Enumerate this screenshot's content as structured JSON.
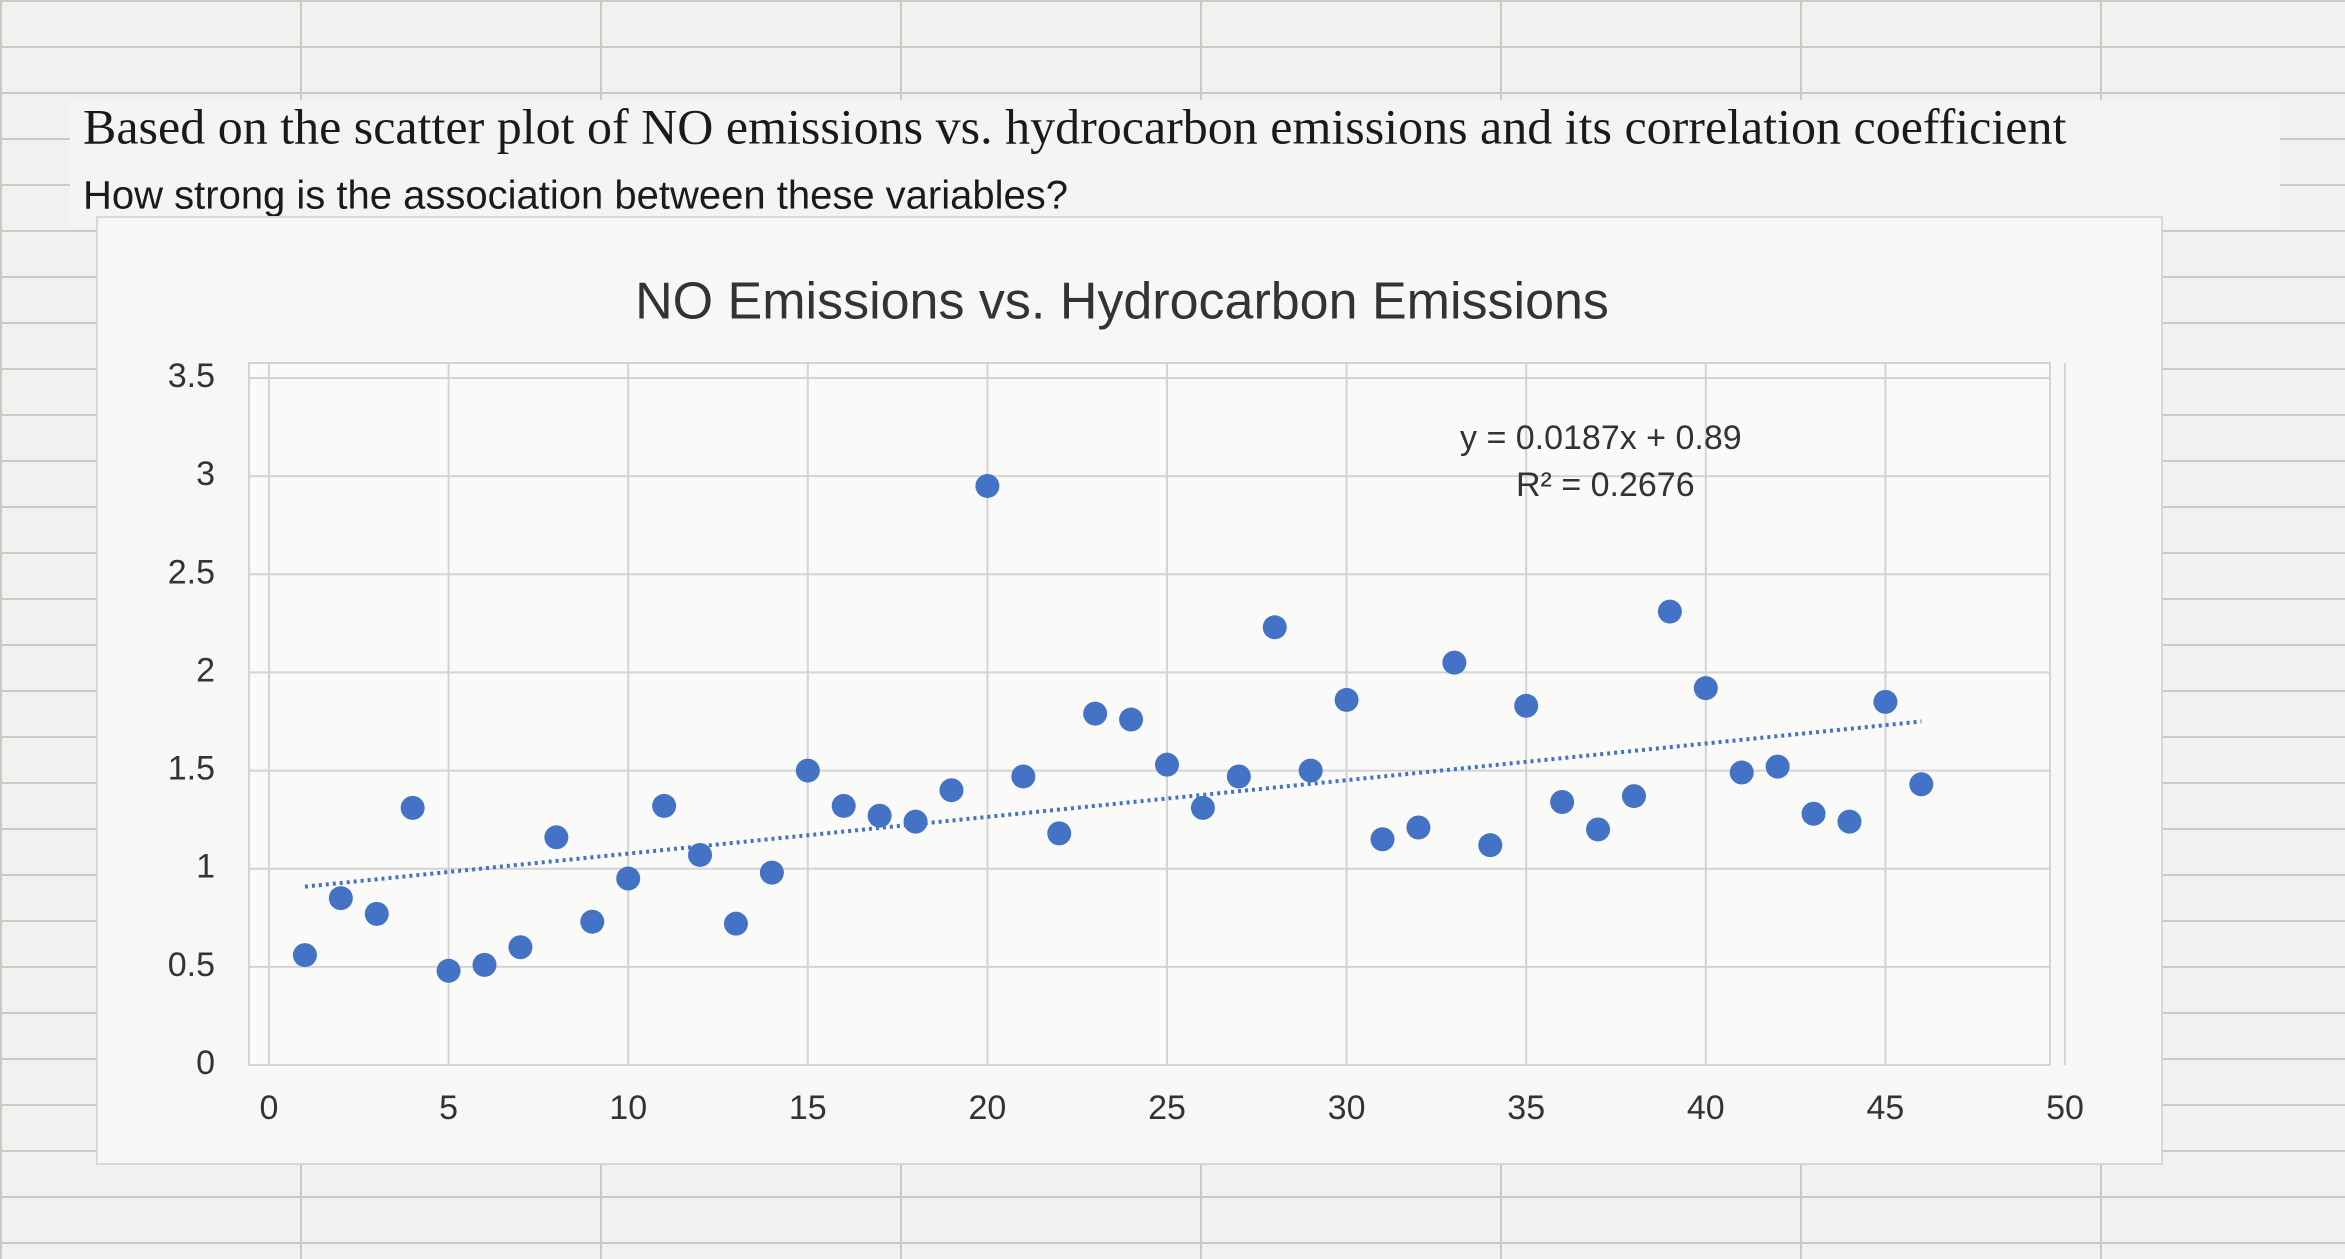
{
  "question": {
    "title": "Based on the scatter plot of NO emissions vs. hydrocarbon emissions and its correlation coefficient",
    "prompt": "How strong is the association between these variables?"
  },
  "chart_data": {
    "type": "scatter",
    "title": "NO Emissions vs. Hydrocarbon Emissions",
    "series": [
      {
        "color": "#4472c4",
        "x": [
          1,
          2,
          3,
          4,
          5,
          6,
          7,
          8,
          9,
          10,
          11,
          12,
          13,
          14,
          15,
          16,
          17,
          18,
          19,
          20,
          21,
          22,
          23,
          24,
          25,
          26,
          27,
          28,
          29,
          30,
          31,
          32,
          33,
          34,
          35,
          36,
          37,
          38,
          39,
          40,
          41,
          42,
          43,
          44,
          45,
          46
        ],
        "values": [
          0.56,
          0.85,
          0.77,
          1.31,
          0.48,
          0.51,
          0.6,
          1.16,
          0.73,
          0.95,
          1.32,
          1.07,
          0.72,
          0.98,
          1.5,
          1.32,
          1.27,
          1.24,
          1.4,
          2.95,
          1.47,
          1.18,
          1.79,
          1.76,
          1.53,
          1.31,
          1.47,
          2.23,
          1.5,
          1.86,
          1.15,
          1.21,
          2.05,
          1.12,
          1.83,
          1.34,
          1.2,
          1.37,
          2.31,
          1.92,
          1.49,
          1.52,
          1.28,
          1.24,
          1.85,
          1.43
        ]
      }
    ],
    "trendline": {
      "slope": 0.0187,
      "intercept": 0.89,
      "equation": "y = 0.0187x + 0.89",
      "r_squared": "R² = 0.2676"
    },
    "xlim": [
      0,
      50
    ],
    "xticks": [
      0,
      5,
      10,
      15,
      20,
      25,
      30,
      35,
      40,
      45,
      50
    ],
    "ylim": [
      0,
      3.5
    ],
    "yticks": [
      0,
      0.5,
      1,
      1.5,
      2,
      2.5,
      3,
      3.5
    ],
    "grid": true
  }
}
